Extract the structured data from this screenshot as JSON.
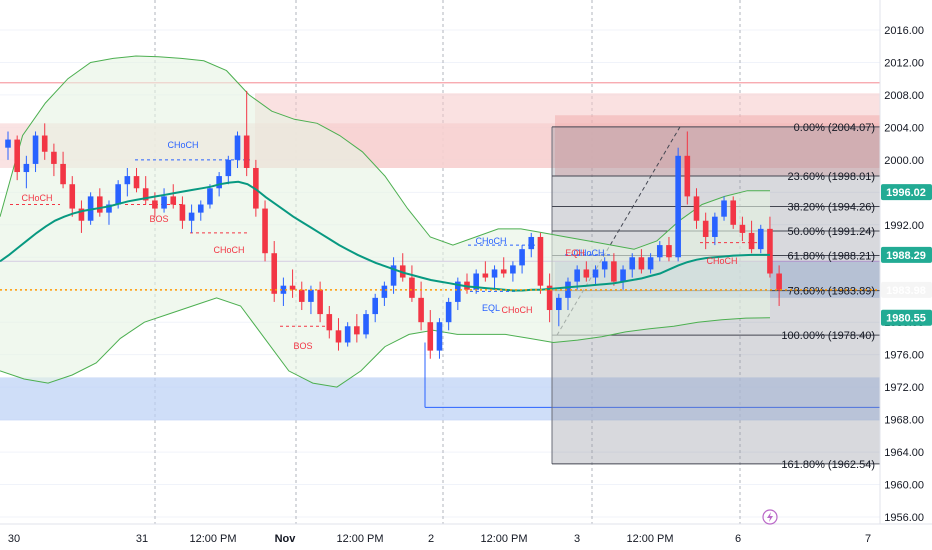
{
  "chart_data": {
    "type": "candlestick",
    "x_tick_labels": [
      "30",
      "31",
      "12:00 PM",
      "Nov",
      "12:00 PM",
      "2",
      "12:00 PM",
      "3",
      "12:00 PM",
      "6",
      "7"
    ],
    "y_tick_labels": [
      "2016.00",
      "2012.00",
      "2008.00",
      "2004.00",
      "2000.00",
      "1996.00",
      "1992.00",
      "1988.00",
      "1984.00",
      "1980.00",
      "1976.00",
      "1972.00",
      "1968.00",
      "1964.00",
      "1960.00",
      "1956.00"
    ],
    "ylim": [
      1955.0,
      2019.0
    ],
    "grid": true,
    "fib_levels": [
      {
        "label": "0.00% (2004.07)",
        "value": 2004.07
      },
      {
        "label": "23.60% (1998.01)",
        "value": 1998.01
      },
      {
        "label": "38.20% (1994.26)",
        "value": 1994.26
      },
      {
        "label": "50.00% (1991.24)",
        "value": 1991.24
      },
      {
        "label": "61.80% (1988.21)",
        "value": 1988.21
      },
      {
        "label": "78.60% (1983.89)",
        "value": 1983.89
      },
      {
        "label": "100.00% (1978.40)",
        "value": 1978.4
      },
      {
        "label": "161.80% (1962.54)",
        "value": 1962.54
      }
    ],
    "price_tags": [
      {
        "label": "1996.02",
        "value": 1996.02,
        "color": "#22ab94"
      },
      {
        "label": "1988.29",
        "value": 1988.29,
        "color": "#22ab94"
      },
      {
        "label": "1983.98",
        "value": 1983.98,
        "color": "#f5f5f5"
      },
      {
        "label": "1980.55",
        "value": 1980.55,
        "color": "#22ab94"
      }
    ],
    "structure_labels": [
      {
        "text": "CHoCH",
        "color": "#2962ff"
      },
      {
        "text": "CHoCH",
        "color": "#f23645"
      },
      {
        "text": "BOS",
        "color": "#f23645"
      },
      {
        "text": "CHoCH",
        "color": "#f23645"
      },
      {
        "text": "BOS",
        "color": "#f23645"
      },
      {
        "text": "CHoCH",
        "color": "#2962ff"
      },
      {
        "text": "EQL",
        "color": "#2962ff"
      },
      {
        "text": "CHoCH",
        "color": "#f23645"
      },
      {
        "text": "CHoCH",
        "color": "#2962ff"
      },
      {
        "text": "EQH",
        "color": "#f23645"
      },
      {
        "text": "CHoCH",
        "color": "#f23645"
      }
    ],
    "candles": [
      [
        2001.5,
        2003.5,
        2000.0,
        2002.5
      ],
      [
        2002.5,
        2003.0,
        1997.5,
        1998.5
      ],
      [
        1998.5,
        2000.5,
        1996.5,
        1999.5
      ],
      [
        1999.5,
        2003.5,
        1998.5,
        2003.0
      ],
      [
        2003.0,
        2004.5,
        2000.0,
        2001.0
      ],
      [
        2001.0,
        2002.0,
        1998.0,
        1999.5
      ],
      [
        1999.5,
        2001.0,
        1996.5,
        1997.0
      ],
      [
        1997.0,
        1998.0,
        1993.0,
        1994.0
      ],
      [
        1994.0,
        1995.0,
        1991.0,
        1992.5
      ],
      [
        1992.5,
        1996.0,
        1992.0,
        1995.5
      ],
      [
        1995.5,
        1996.5,
        1993.0,
        1993.5
      ],
      [
        1993.5,
        1995.0,
        1992.0,
        1994.5
      ],
      [
        1994.5,
        1997.5,
        1994.0,
        1997.0
      ],
      [
        1997.0,
        1999.0,
        1995.5,
        1998.0
      ],
      [
        1998.0,
        1999.0,
        1996.0,
        1996.5
      ],
      [
        1996.5,
        1998.0,
        1994.5,
        1995.0
      ],
      [
        1995.0,
        1996.0,
        1993.0,
        1994.0
      ],
      [
        1994.0,
        1996.5,
        1993.5,
        1995.5
      ],
      [
        1995.5,
        1997.0,
        1994.0,
        1994.5
      ],
      [
        1994.5,
        1995.5,
        1991.5,
        1992.5
      ],
      [
        1992.5,
        1994.5,
        1991.0,
        1993.5
      ],
      [
        1993.5,
        1995.0,
        1992.5,
        1994.5
      ],
      [
        1994.5,
        1997.0,
        1994.0,
        1996.5
      ],
      [
        1996.5,
        1998.5,
        1995.5,
        1998.0
      ],
      [
        1998.0,
        2000.5,
        1997.0,
        2000.0
      ],
      [
        2000.0,
        2003.5,
        1999.0,
        2003.0
      ],
      [
        2003.0,
        2008.5,
        1998.0,
        1999.0
      ],
      [
        1999.0,
        2000.0,
        1993.0,
        1994.0
      ],
      [
        1994.0,
        1995.0,
        1987.5,
        1988.5
      ],
      [
        1988.5,
        1990.0,
        1982.5,
        1983.5
      ],
      [
        1983.5,
        1985.5,
        1982.0,
        1984.5
      ],
      [
        1984.5,
        1986.5,
        1983.0,
        1984.0
      ],
      [
        1984.0,
        1985.0,
        1981.5,
        1982.5
      ],
      [
        1982.5,
        1984.5,
        1981.0,
        1984.0
      ],
      [
        1984.0,
        1985.0,
        1980.0,
        1981.0
      ],
      [
        1981.0,
        1982.0,
        1978.0,
        1979.0
      ],
      [
        1979.0,
        1980.5,
        1976.5,
        1977.5
      ],
      [
        1977.5,
        1980.0,
        1977.0,
        1979.5
      ],
      [
        1979.5,
        1981.0,
        1977.5,
        1978.5
      ],
      [
        1978.5,
        1981.5,
        1978.0,
        1981.0
      ],
      [
        1981.0,
        1983.5,
        1980.0,
        1983.0
      ],
      [
        1983.0,
        1985.0,
        1982.0,
        1984.5
      ],
      [
        1984.5,
        1988.0,
        1983.5,
        1987.0
      ],
      [
        1987.0,
        1988.5,
        1985.0,
        1985.5
      ],
      [
        1985.5,
        1987.0,
        1982.5,
        1983.0
      ],
      [
        1983.0,
        1985.0,
        1979.0,
        1980.0
      ],
      [
        1980.0,
        1981.5,
        1975.5,
        1976.5
      ],
      [
        1976.5,
        1980.5,
        1975.5,
        1980.0
      ],
      [
        1980.0,
        1983.0,
        1979.0,
        1982.5
      ],
      [
        1982.5,
        1985.5,
        1981.5,
        1985.0
      ],
      [
        1985.0,
        1986.0,
        1983.5,
        1984.0
      ],
      [
        1984.0,
        1986.5,
        1983.5,
        1986.0
      ],
      [
        1986.0,
        1987.5,
        1985.0,
        1985.5
      ],
      [
        1985.5,
        1987.0,
        1984.0,
        1986.5
      ],
      [
        1986.5,
        1988.0,
        1985.5,
        1986.0
      ],
      [
        1986.0,
        1987.5,
        1985.0,
        1987.0
      ],
      [
        1987.0,
        1989.5,
        1986.0,
        1989.0
      ],
      [
        1989.0,
        1991.0,
        1988.0,
        1990.5
      ],
      [
        1990.5,
        1991.0,
        1983.5,
        1984.5
      ],
      [
        1984.5,
        1986.0,
        1980.0,
        1981.5
      ],
      [
        1981.5,
        1983.5,
        1979.5,
        1983.0
      ],
      [
        1983.0,
        1985.5,
        1981.5,
        1985.0
      ],
      [
        1985.0,
        1987.0,
        1984.0,
        1986.5
      ],
      [
        1986.5,
        1987.5,
        1985.0,
        1985.5
      ],
      [
        1985.5,
        1987.0,
        1984.5,
        1986.5
      ],
      [
        1986.5,
        1988.0,
        1985.5,
        1987.5
      ],
      [
        1987.5,
        1988.5,
        1984.5,
        1985.0
      ],
      [
        1985.0,
        1987.0,
        1984.0,
        1986.5
      ],
      [
        1986.5,
        1988.5,
        1985.5,
        1988.0
      ],
      [
        1988.0,
        1989.0,
        1986.0,
        1986.5
      ],
      [
        1986.5,
        1988.5,
        1986.0,
        1988.0
      ],
      [
        1988.0,
        1990.0,
        1987.5,
        1989.5
      ],
      [
        1989.5,
        1990.5,
        1987.5,
        1988.0
      ],
      [
        1988.0,
        2001.5,
        1987.5,
        2000.5
      ],
      [
        2000.5,
        2003.5,
        1994.5,
        1995.5
      ],
      [
        1995.5,
        1996.5,
        1991.5,
        1992.5
      ],
      [
        1992.5,
        1993.5,
        1989.0,
        1990.5
      ],
      [
        1990.5,
        1993.5,
        1989.5,
        1993.0
      ],
      [
        1993.0,
        1995.5,
        1992.5,
        1995.0
      ],
      [
        1995.0,
        1995.5,
        1991.5,
        1992.0
      ],
      [
        1992.0,
        1993.0,
        1990.0,
        1991.0
      ],
      [
        1991.0,
        1992.5,
        1988.5,
        1989.0
      ],
      [
        1989.0,
        1992.0,
        1988.5,
        1991.5
      ],
      [
        1991.5,
        1993.0,
        1985.5,
        1986.0
      ],
      [
        1986.0,
        1987.0,
        1982.0,
        1983.98
      ]
    ],
    "ema_line": [
      1987.5,
      1988.3,
      1989.2,
      1990.1,
      1991.0,
      1991.8,
      1992.5,
      1993.0,
      1993.4,
      1993.7,
      1993.9,
      1994.1,
      1994.3,
      1994.6,
      1994.9,
      1995.1,
      1995.3,
      1995.5,
      1995.7,
      1995.9,
      1996.1,
      1996.3,
      1996.5,
      1996.7,
      1997.0,
      1997.2,
      1997.3,
      1997.0,
      1996.3,
      1995.4,
      1994.6,
      1993.8,
      1993.0,
      1992.3,
      1991.6,
      1990.9,
      1990.2,
      1989.5,
      1988.9,
      1988.3,
      1987.8,
      1987.3,
      1986.9,
      1986.5,
      1986.1,
      1985.8,
      1985.5,
      1985.2,
      1985.0,
      1984.8,
      1984.6,
      1984.4,
      1984.3,
      1984.2,
      1984.1,
      1984.0,
      1983.9,
      1983.9,
      1984.0,
      1984.0,
      1984.1,
      1984.2,
      1984.3,
      1984.4,
      1984.5,
      1984.6,
      1984.7,
      1984.8,
      1985.0,
      1985.2,
      1985.4,
      1985.7,
      1986.0,
      1986.5,
      1987.0,
      1987.4,
      1987.7,
      1987.9,
      1988.0,
      1988.1,
      1988.2,
      1988.25,
      1988.29,
      1988.29,
      1988.29
    ]
  }
}
